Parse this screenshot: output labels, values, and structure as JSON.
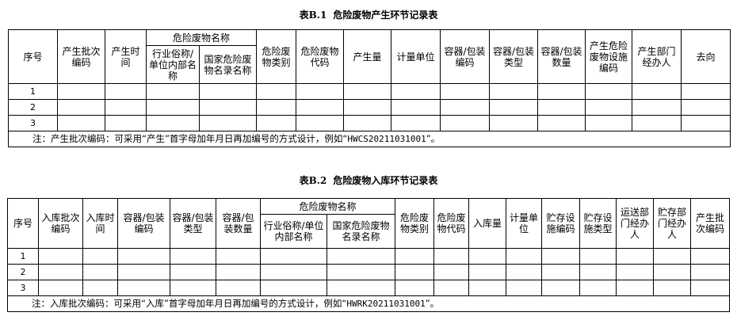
{
  "table1": {
    "title_no": "表B.1",
    "title": "危险废物产生环节记录表",
    "group_header": "危险废物名称",
    "headers": [
      "序号",
      "产生批次编码",
      "产生时间",
      "行业俗称/单位内部名称",
      "国家危险废物名录名称",
      "危险废物类别",
      "危险废物代码",
      "产生量",
      "计量单位",
      "容器/包装编码",
      "容器/包装类型",
      "容器/包装数量",
      "产生危险废物设施编码",
      "产生部门经办人",
      "去向"
    ],
    "rows": [
      "1",
      "2",
      "3"
    ],
    "note_prefix": "注：产生批次编码：可采用“产生”首字母加年月日再加编号的方式设计，例如“",
    "note_code": "HWCS20211031001",
    "note_suffix": "”。"
  },
  "table2": {
    "title_no": "表B.2",
    "title": "危险废物入库环节记录表",
    "group_header": "危险废物名称",
    "headers": [
      "序号",
      "入库批次编码",
      "入库时间",
      "容器/包装编码",
      "容器/包装类型",
      "容器/包装数量",
      "行业俗称/单位内部名称",
      "国家危险废物名录名称",
      "危险废物类别",
      "危险废物代码",
      "入库量",
      "计量单位",
      "贮存设施编码",
      "贮存设施类型",
      "运送部门经办人",
      "贮存部门经办人",
      "产生批次编码"
    ],
    "rows": [
      "1",
      "2",
      "3"
    ],
    "note_prefix": "注：入库批次编码：可采用“入库”首字母加年月日再加编号的方式设计，例如“",
    "note_code": "HWRK20211031001",
    "note_suffix": "”。"
  }
}
